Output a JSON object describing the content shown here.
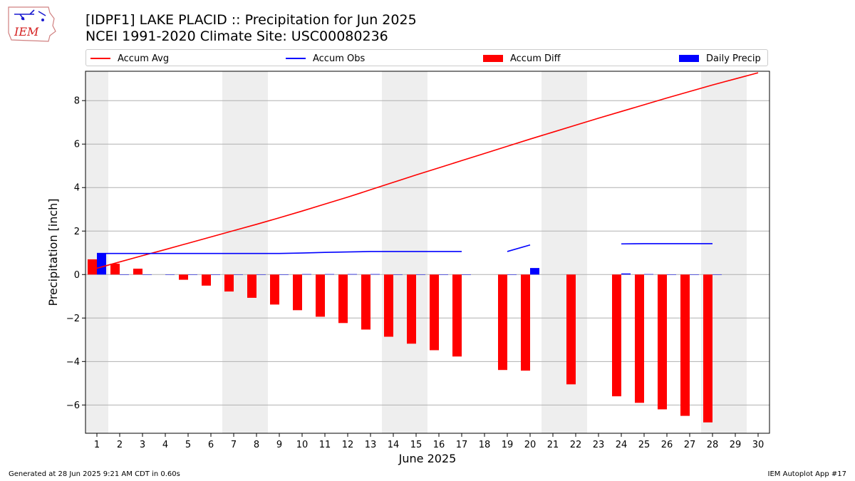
{
  "header": {
    "title_line1": "[IDPF1] LAKE PLACID :: Precipitation for Jun 2025",
    "title_line2": "NCEI 1991-2020 Climate Site: USC00080236",
    "logo_text": "IEM"
  },
  "footer": {
    "left": "Generated at 28 Jun 2025 9:21 AM CDT in 0.60s",
    "right": "IEM Autoplot App #17"
  },
  "legend": {
    "accum_avg": "Accum Avg",
    "accum_obs": "Accum Obs",
    "accum_diff": "Accum Diff",
    "daily_precip": "Daily Precip"
  },
  "chart_data": {
    "type": "bar",
    "xlabel": "June 2025",
    "ylabel": "Precipitation [inch]",
    "xlim": [
      0.5,
      30.5
    ],
    "ylim": [
      -7.3,
      9.35
    ],
    "yticks": [
      -6,
      -4,
      -2,
      0,
      2,
      4,
      6,
      8
    ],
    "grid": true,
    "legend_position": "top",
    "weekend_shading": [
      [
        0.5,
        1.5
      ],
      [
        6.5,
        8.5
      ],
      [
        13.5,
        15.5
      ],
      [
        20.5,
        22.5
      ],
      [
        27.5,
        29.5
      ]
    ],
    "days": [
      1,
      2,
      3,
      4,
      5,
      6,
      7,
      8,
      9,
      10,
      11,
      12,
      13,
      14,
      15,
      16,
      17,
      18,
      19,
      20,
      21,
      22,
      23,
      24,
      25,
      26,
      27,
      28,
      29,
      30
    ],
    "colors": {
      "accum_avg": "#ff0000",
      "accum_obs": "#0000ff",
      "accum_diff": "#ff0000",
      "daily_precip": "#0000ff",
      "weekend": "#eeeeee",
      "grid": "#b0b0b0"
    },
    "series": [
      {
        "name": "Accum Avg",
        "kind": "line",
        "values": [
          0.29,
          0.58,
          0.87,
          1.15,
          1.44,
          1.73,
          2.02,
          2.31,
          2.61,
          2.92,
          3.24,
          3.56,
          3.9,
          4.24,
          4.58,
          4.91,
          5.24,
          5.57,
          5.9,
          6.23,
          6.55,
          6.87,
          7.19,
          7.5,
          7.81,
          8.12,
          8.42,
          8.72,
          9.0,
          9.28
        ]
      },
      {
        "name": "Accum Obs",
        "kind": "line",
        "values": [
          0.97,
          0.97,
          0.97,
          0.97,
          0.97,
          0.97,
          0.97,
          0.97,
          0.97,
          0.99,
          1.02,
          1.04,
          1.06,
          1.06,
          1.06,
          1.06,
          1.06,
          null,
          1.06,
          1.36,
          null,
          null,
          null,
          1.41,
          1.42,
          1.42,
          1.42,
          1.42,
          null,
          null
        ]
      },
      {
        "name": "Accum Diff",
        "kind": "bar",
        "values": [
          0.7,
          0.5,
          0.27,
          null,
          -0.24,
          -0.51,
          -0.78,
          -1.07,
          -1.38,
          -1.64,
          -1.94,
          -2.23,
          -2.53,
          -2.86,
          -3.18,
          -3.48,
          -3.77,
          null,
          -4.39,
          -4.42,
          null,
          -5.05,
          null,
          -5.6,
          -5.9,
          -6.2,
          -6.5,
          -6.8,
          null,
          null
        ]
      },
      {
        "name": "Daily Precip",
        "kind": "bar",
        "values": [
          0.97,
          0,
          0,
          0,
          0,
          0,
          0,
          0,
          0,
          0.02,
          0.02,
          0.02,
          0.02,
          0,
          0,
          0,
          0,
          null,
          0,
          0.3,
          null,
          null,
          null,
          0.05,
          0.02,
          0,
          0,
          0,
          null,
          null
        ]
      }
    ]
  }
}
